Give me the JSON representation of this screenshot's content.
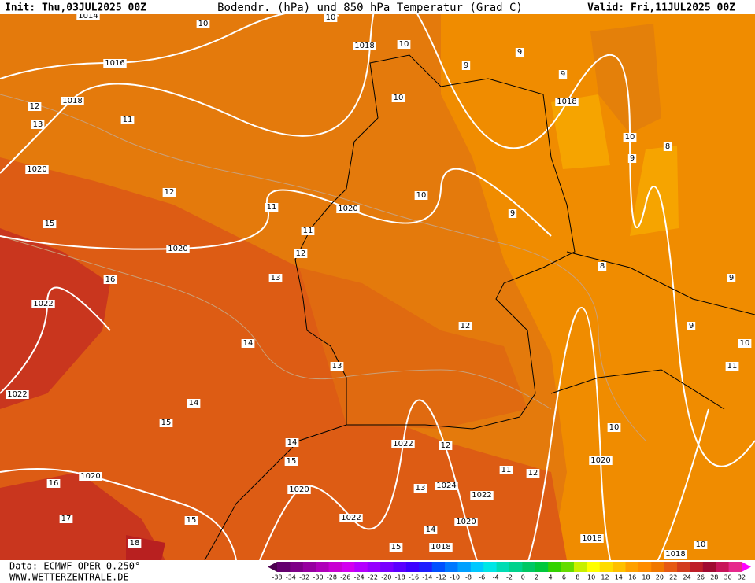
{
  "header": {
    "init": "Init: Thu,03JUL2025 00Z",
    "title": "Bodendr. (hPa) und 850 hPa Temperatur (Grad C)",
    "valid": "Valid: Fri,11JUL2025 00Z"
  },
  "footer": {
    "source": "Data: ECMWF OPER 0.250°",
    "site": "WWW.WETTERZENTRALE.DE"
  },
  "legend": {
    "labels": [
      "-38",
      "-34",
      "-32",
      "-30",
      "-28",
      "-26",
      "-24",
      "-22",
      "-20",
      "-18",
      "-16",
      "-14",
      "-12",
      "-10",
      "-8",
      "-6",
      "-4",
      "-2",
      "0",
      "2",
      "4",
      "6",
      "8",
      "10",
      "12",
      "14",
      "16",
      "18",
      "20",
      "22",
      "24",
      "26",
      "28",
      "30",
      "32"
    ],
    "colors": [
      "#4b0050",
      "#64006e",
      "#7d0087",
      "#9600a0",
      "#af00b9",
      "#c800d2",
      "#d200f0",
      "#b400ff",
      "#9600ff",
      "#7800ff",
      "#5a00ff",
      "#3c00ff",
      "#1e1eff",
      "#0050ff",
      "#0078ff",
      "#00a0ff",
      "#00c8ff",
      "#00e6e6",
      "#00dcb4",
      "#00d28c",
      "#00c864",
      "#00c83c",
      "#32d200",
      "#64dc00",
      "#c8f000",
      "#ffff00",
      "#ffdc00",
      "#ffc000",
      "#ffa000",
      "#ff8c00",
      "#f07800",
      "#e65a14",
      "#d23c1e",
      "#be1e28",
      "#a00a32",
      "#c8145a",
      "#e6288c",
      "#ff00ff"
    ]
  },
  "contour_labels": [
    "1014",
    "10",
    "10",
    "1018",
    "10",
    "9",
    "9",
    "1016",
    "1018",
    "12",
    "11",
    "13",
    "9",
    "10",
    "1018",
    "10",
    "8",
    "9",
    "1020",
    "12",
    "10",
    "11",
    "1020",
    "9",
    "15",
    "11",
    "1020",
    "12",
    "8",
    "13",
    "16",
    "9",
    "1022",
    "12",
    "9",
    "14",
    "10",
    "13",
    "11",
    "1022",
    "14",
    "15",
    "10",
    "14",
    "1022",
    "12",
    "15",
    "1020",
    "11",
    "12",
    "1020",
    "16",
    "13",
    "1024",
    "1020",
    "1022",
    "1022",
    "17",
    "15",
    "1020",
    "14",
    "1018",
    "18",
    "15",
    "1018",
    "10",
    "1018"
  ]
}
